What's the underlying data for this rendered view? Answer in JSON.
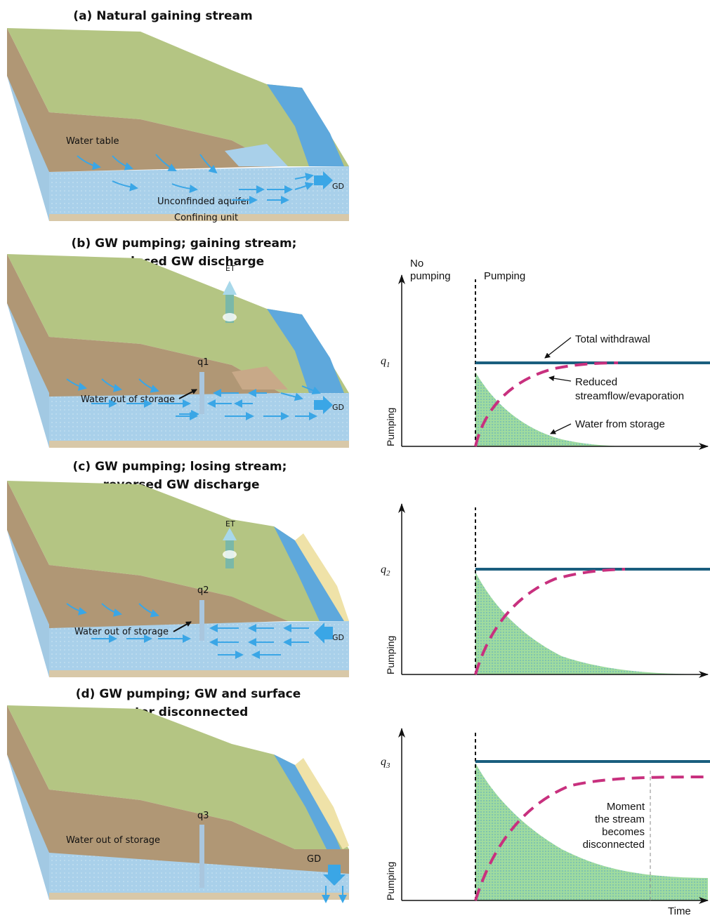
{
  "panels": {
    "a": {
      "title": "(a) Natural gaining stream",
      "water_table": "Water table",
      "aquifer": "Unconfinded aquifer",
      "confining": "Confining unit",
      "gd": "GD"
    },
    "b": {
      "title1": "(b) GW pumping; gaining stream;",
      "title2": "reduced GW discharge",
      "et": "ET",
      "well": "q1",
      "storage": "Water out of storage",
      "gd": "GD"
    },
    "c": {
      "title1": "(c) GW pumping; losing stream;",
      "title2": "reversed GW discharge",
      "et": "ET",
      "well": "q2",
      "storage": "Water out of storage",
      "gd": "GD"
    },
    "d": {
      "title1": "(d) GW pumping; GW and surface",
      "title2": "water disconnected",
      "well": "q3",
      "storage": "Water out of storage",
      "gd": "GD"
    }
  },
  "graphs": {
    "b": {
      "no_pumping_1": "No",
      "no_pumping_2": "pumping",
      "pumping": "Pumping",
      "q": "q",
      "q_sub": "1",
      "ylabel": "Pumping",
      "total": "Total withdrawal",
      "reduced_1": "Reduced",
      "reduced_2": "streamflow/evaporation",
      "storage": "Water from storage"
    },
    "c": {
      "q": "q",
      "q_sub": "2",
      "ylabel": "Pumping"
    },
    "d": {
      "q": "q",
      "q_sub": "3",
      "ylabel": "Pumping",
      "moment_1": "Moment",
      "moment_2": "the stream",
      "moment_3": "becomes",
      "moment_4": "disconnected",
      "xlabel": "Time"
    }
  },
  "colors": {
    "land": "#b4c583",
    "soil": "#b09775",
    "aquifer": "#a9d0ea",
    "stream": "#5ea8dc",
    "arrow": "#3aa6e6",
    "withdrawal": "#1a5e7e",
    "streamflow": "#c8307e",
    "storage_fill": "#9fdb9f"
  }
}
